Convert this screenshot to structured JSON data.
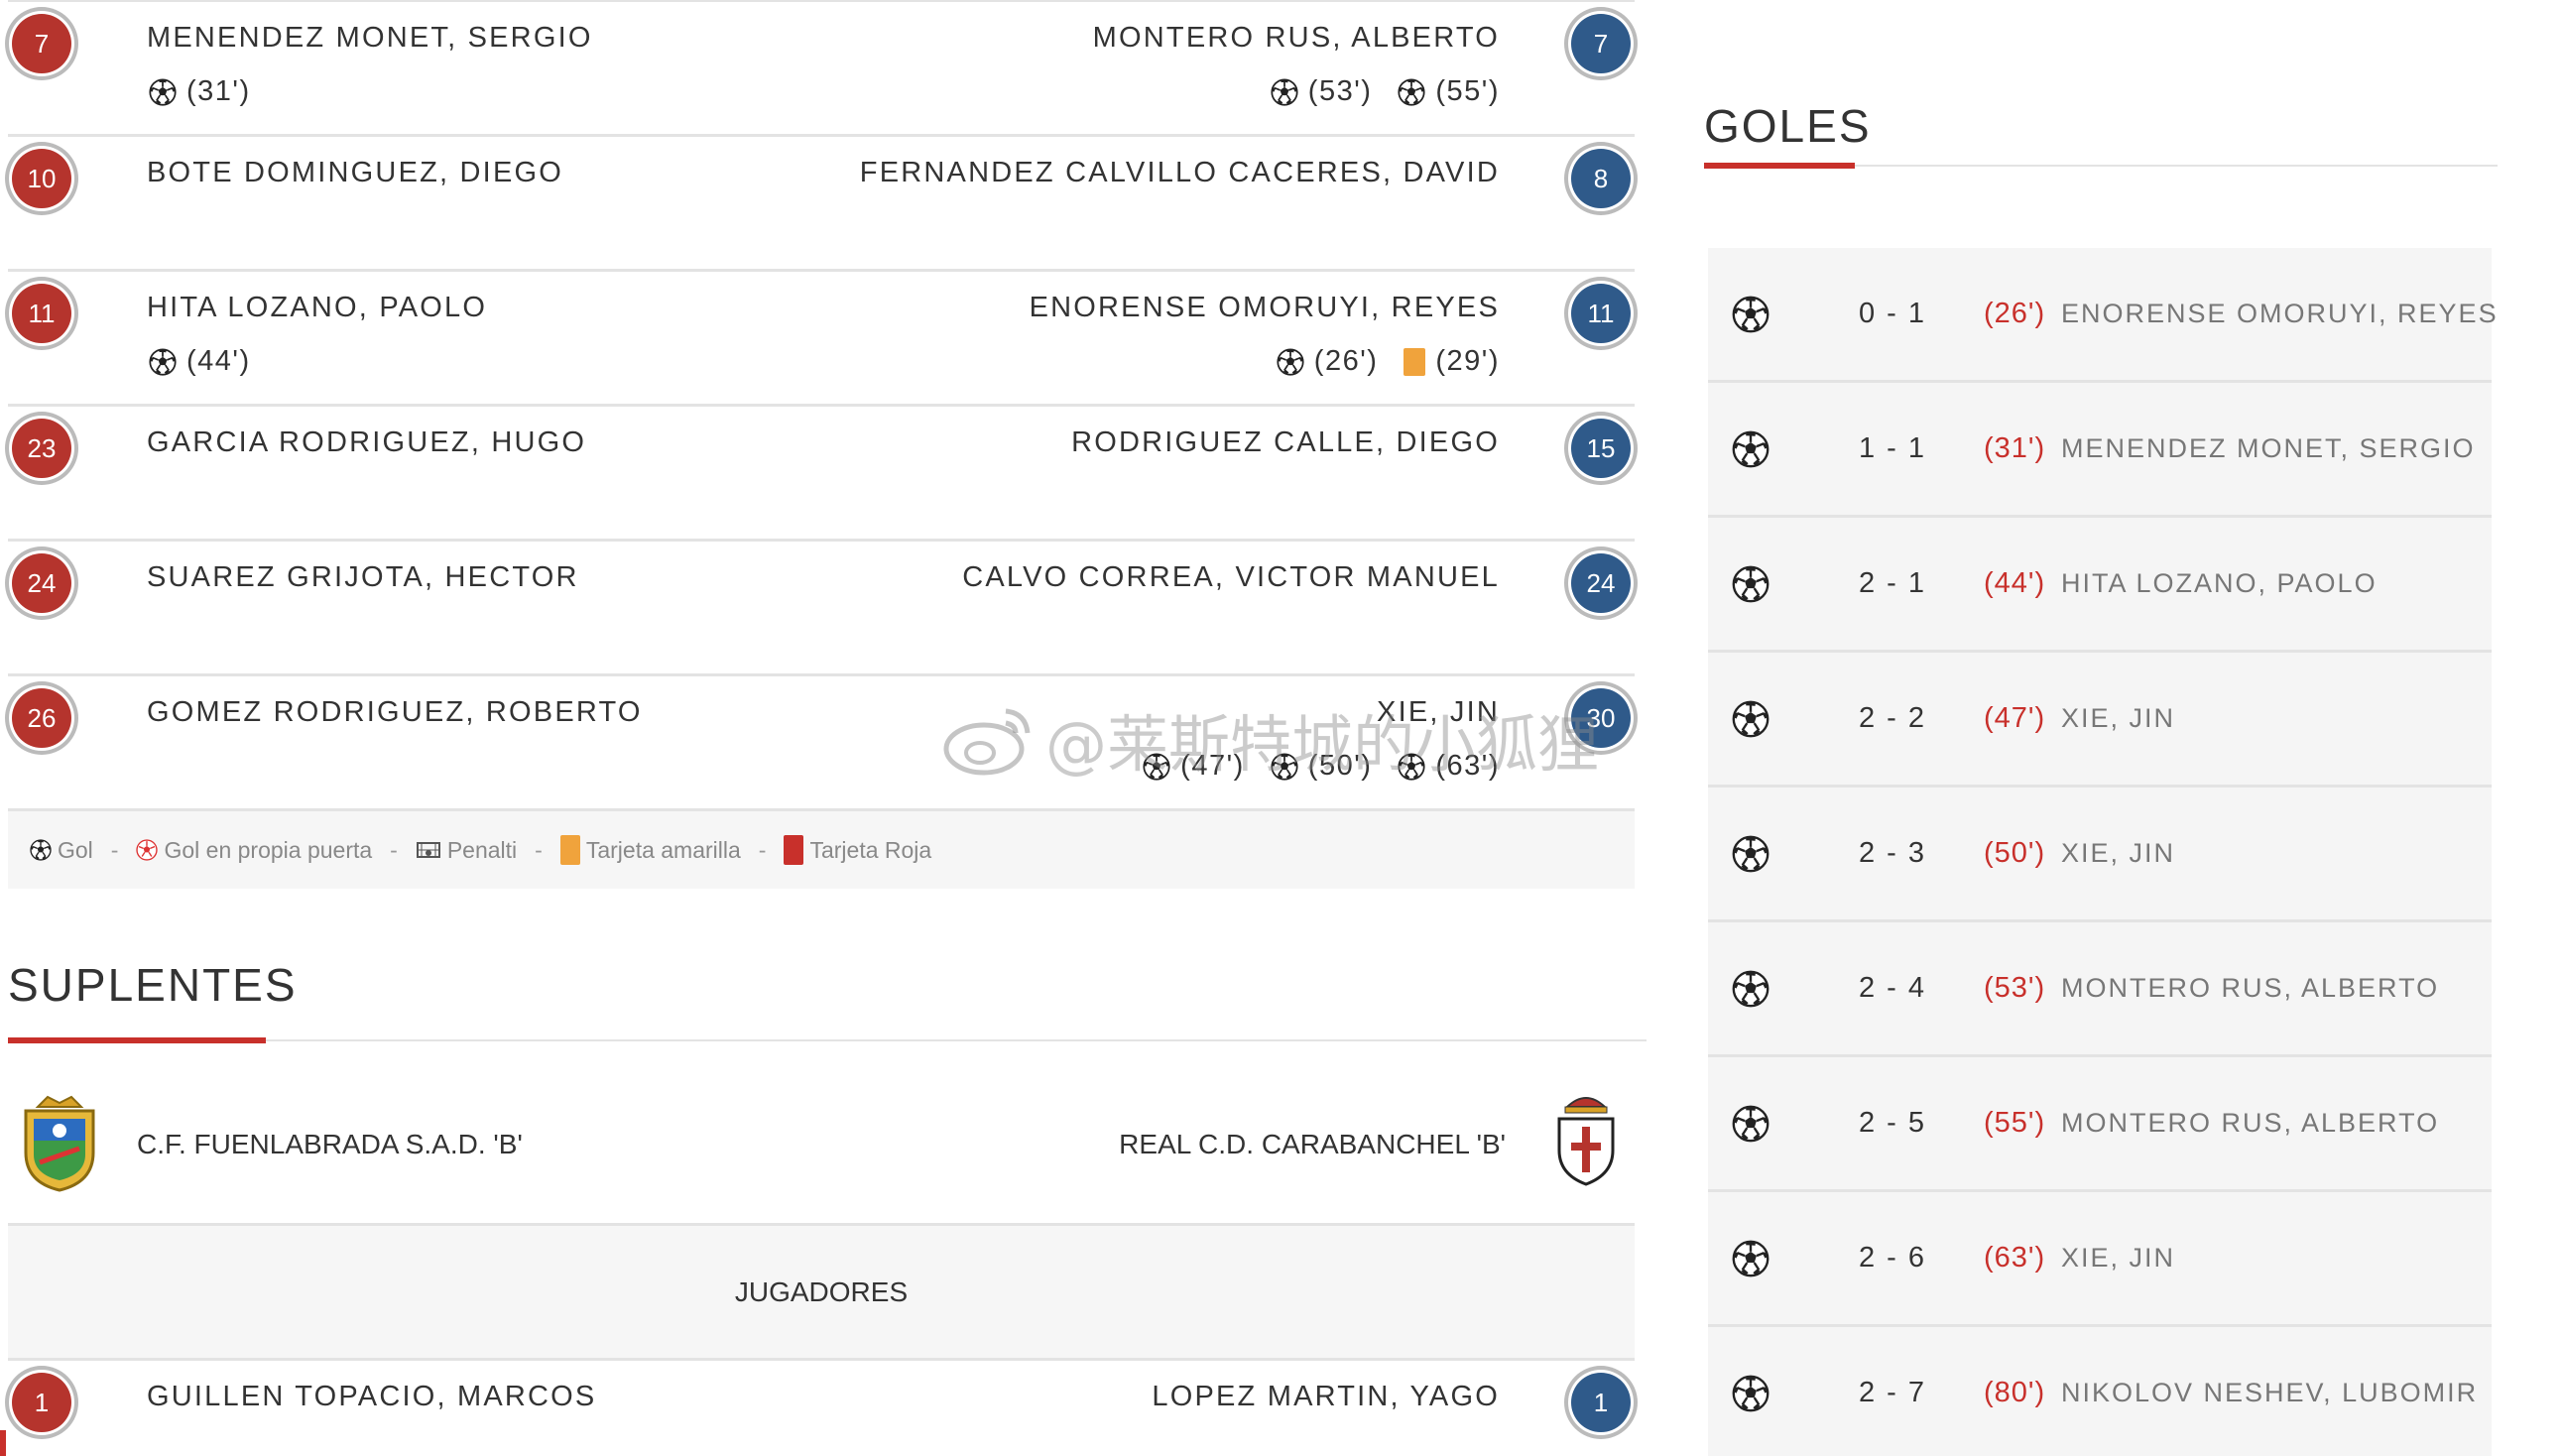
{
  "lineup": {
    "rows": [
      {
        "home_num": "7",
        "home_name": "MENENDEZ MONET, SERGIO",
        "away_name": "MONTERO RUS, ALBERTO",
        "away_num": "7",
        "home_events": [
          {
            "type": "goal",
            "text": "(31')"
          }
        ],
        "away_events": [
          {
            "type": "goal",
            "text": "(53')"
          },
          {
            "type": "goal",
            "text": "(55')"
          }
        ]
      },
      {
        "home_num": "10",
        "home_name": "BOTE DOMINGUEZ, DIEGO",
        "away_name": "FERNANDEZ CALVILLO CACERES, DAVID",
        "away_num": "8",
        "home_events": [],
        "away_events": []
      },
      {
        "home_num": "11",
        "home_name": "HITA LOZANO, PAOLO",
        "away_name": "ENORENSE OMORUYI, REYES",
        "away_num": "11",
        "home_events": [
          {
            "type": "goal",
            "text": "(44')"
          }
        ],
        "away_events": [
          {
            "type": "goal",
            "text": "(26')"
          },
          {
            "type": "yellow",
            "text": "(29')"
          }
        ]
      },
      {
        "home_num": "23",
        "home_name": "GARCIA RODRIGUEZ, HUGO",
        "away_name": "RODRIGUEZ CALLE, DIEGO",
        "away_num": "15",
        "home_events": [],
        "away_events": []
      },
      {
        "home_num": "24",
        "home_name": "SUAREZ GRIJOTA, HECTOR",
        "away_name": "CALVO CORREA, VICTOR MANUEL",
        "away_num": "24",
        "home_events": [],
        "away_events": []
      },
      {
        "home_num": "26",
        "home_name": "GOMEZ RODRIGUEZ, ROBERTO",
        "away_name": "XIE, JIN",
        "away_num": "30",
        "home_events": [],
        "away_events": [
          {
            "type": "goal",
            "text": "(47')"
          },
          {
            "type": "goal",
            "text": "(50')"
          },
          {
            "type": "goal",
            "text": "(63')"
          }
        ]
      }
    ]
  },
  "legend": {
    "gol": "Gol",
    "own_goal": "Gol en propia puerta",
    "penalti": "Penalti",
    "yellow": "Tarjeta amarilla",
    "red": "Tarjeta Roja",
    "separator": "-"
  },
  "suplentes": {
    "title": "SUPLENTES",
    "home_team": "C.F. FUENLABRADA S.A.D. 'B'",
    "away_team": "REAL C.D. CARABANCHEL 'B'",
    "jugadores_label": "JUGADORES",
    "first_row": {
      "home_num": "1",
      "home_name": "GUILLEN TOPACIO, MARCOS",
      "away_name": "LOPEZ MARTIN, YAGO",
      "away_num": "1"
    }
  },
  "goles": {
    "title": "GOLES",
    "items": [
      {
        "score": "0 - 1",
        "minute": "(26')",
        "scorer": "ENORENSE OMORUYI, REYES"
      },
      {
        "score": "1 - 1",
        "minute": "(31')",
        "scorer": "MENENDEZ MONET, SERGIO"
      },
      {
        "score": "2 - 1",
        "minute": "(44')",
        "scorer": "HITA LOZANO, PAOLO"
      },
      {
        "score": "2 - 2",
        "minute": "(47')",
        "scorer": "XIE, JIN"
      },
      {
        "score": "2 - 3",
        "minute": "(50')",
        "scorer": "XIE, JIN"
      },
      {
        "score": "2 - 4",
        "minute": "(53')",
        "scorer": "MONTERO RUS, ALBERTO"
      },
      {
        "score": "2 - 5",
        "minute": "(55')",
        "scorer": "MONTERO RUS, ALBERTO"
      },
      {
        "score": "2 - 6",
        "minute": "(63')",
        "scorer": "XIE, JIN"
      },
      {
        "score": "2 - 7",
        "minute": "(80')",
        "scorer": "NIKOLOV NESHEV, LUBOMIR"
      }
    ]
  },
  "watermark": {
    "text": "@莱斯特城的小狐狸"
  },
  "colors": {
    "accent_red": "#c8302b",
    "home_badge": "#b5342d",
    "away_badge": "#2f5a8a",
    "yellow_card": "#f0a33c"
  },
  "icons": {
    "goal": "soccer-ball-icon",
    "own_goal": "own-goal-ball-icon",
    "penalty": "penalty-icon",
    "yellow": "yellow-card-icon",
    "red": "red-card-icon"
  }
}
